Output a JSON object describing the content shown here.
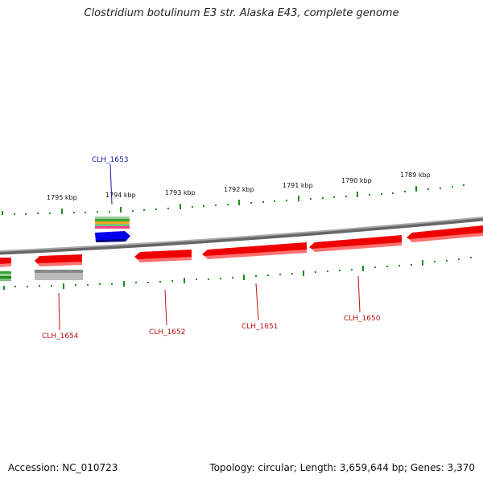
{
  "title": "Clostridium botulinum E3 str. Alaska E43, complete genome",
  "footer": {
    "accession": "Accession: NC_010723",
    "summary": "Topology: circular; Length: 3,659,644 bp; Genes: 3,370"
  },
  "colors": {
    "forward_gene": "#0000ee",
    "reverse_gene": "#ee0000",
    "backbone": "#888888",
    "ticks": "#228b22",
    "grey_feature": "#bbbbbb",
    "label_forward": "#1a1aa8",
    "label_reverse": "#c01010"
  },
  "scale": {
    "unit": "kbp",
    "labels": [
      "1795 kbp",
      "1794 kbp",
      "1793 kbp",
      "1792 kbp",
      "1791 kbp",
      "1790 kbp",
      "1789 kbp"
    ]
  },
  "genes": [
    {
      "label": "CLH_1653",
      "strand": "forward"
    },
    {
      "label": "CLH_1654",
      "strand": "reverse"
    },
    {
      "label": "CLH_1652",
      "strand": "reverse"
    },
    {
      "label": "CLH_1651",
      "strand": "reverse"
    },
    {
      "label": "CLH_1650",
      "strand": "reverse"
    }
  ]
}
